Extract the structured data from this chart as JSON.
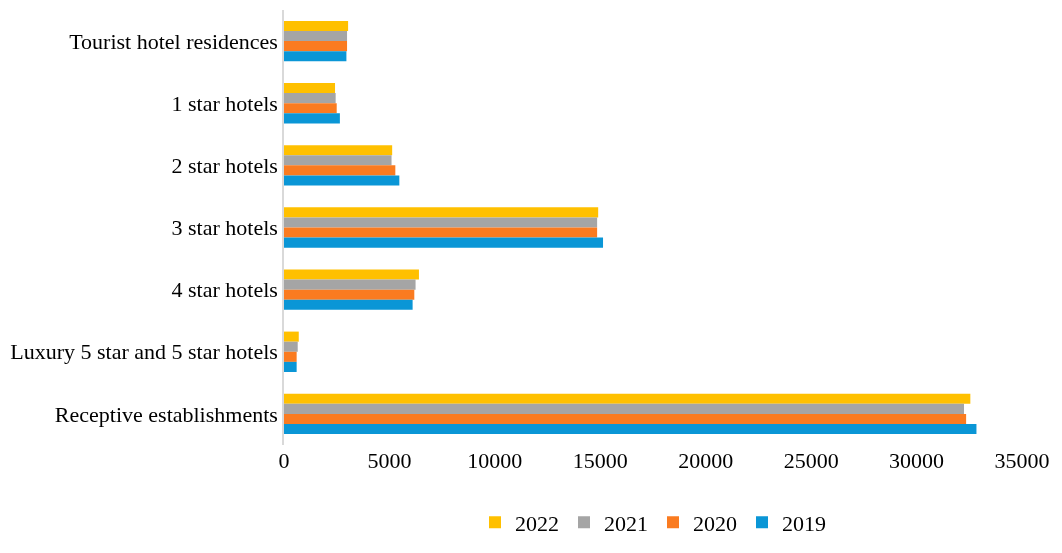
{
  "chart_data": {
    "type": "bar",
    "orientation": "horizontal",
    "categories": [
      "Tourist hotel residences",
      "1 star hotels",
      "2 star hotels",
      "3 star hotels",
      "4 star hotels",
      "Luxury 5 star and 5 star hotels",
      "Receptive establishments"
    ],
    "series": [
      {
        "name": "2022",
        "color": "#ffc000",
        "values": [
          3040,
          2420,
          5130,
          14900,
          6400,
          700,
          32550
        ]
      },
      {
        "name": "2021",
        "color": "#a5a5a5",
        "values": [
          2990,
          2450,
          5100,
          14850,
          6240,
          650,
          32250
        ]
      },
      {
        "name": "2020",
        "color": "#fa7b20",
        "values": [
          2990,
          2500,
          5280,
          14850,
          6180,
          600,
          32350
        ]
      },
      {
        "name": "2019",
        "color": "#0a96d6",
        "values": [
          2960,
          2650,
          5470,
          15130,
          6100,
          600,
          32840
        ]
      }
    ],
    "xlim": [
      0,
      35000
    ],
    "xticks": [
      0,
      5000,
      10000,
      15000,
      20000,
      25000,
      30000,
      35000
    ],
    "legend": "bottom"
  }
}
